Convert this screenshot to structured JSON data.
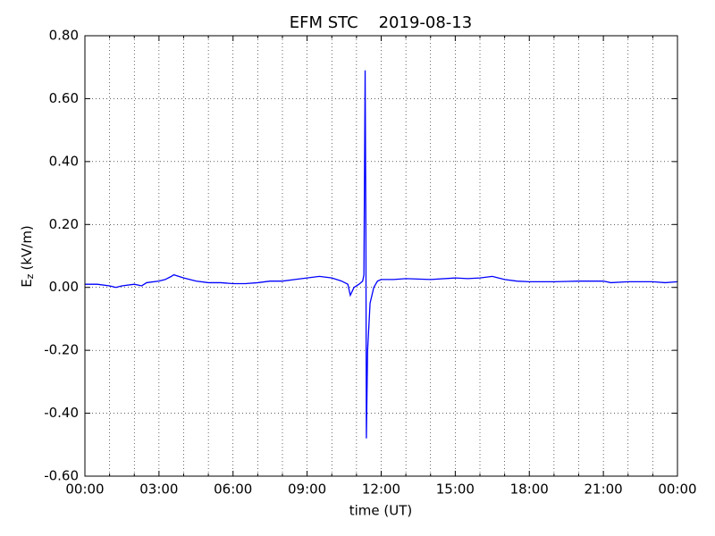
{
  "chart_data": {
    "type": "line",
    "title": "EFM STC    2019-08-13",
    "xlabel": "time (UT)",
    "ylabel": {
      "base": "E",
      "sub": "z",
      "unit": "(kV/m)"
    },
    "x": [
      0,
      0.5,
      1.0,
      1.25,
      1.5,
      2,
      2.3,
      2.5,
      3,
      3.25,
      3.5,
      3.6,
      4,
      4.5,
      5,
      5.5,
      6,
      6.5,
      7,
      7.5,
      8,
      8.5,
      9,
      9.5,
      10,
      10.4,
      10.65,
      10.75,
      10.9,
      11.1,
      11.25,
      11.3,
      11.35,
      11.38,
      11.4,
      11.45,
      11.55,
      11.7,
      11.85,
      12,
      12.5,
      13,
      14,
      15,
      15.5,
      16,
      16.5,
      17,
      17.5,
      18,
      19,
      20,
      21,
      21.3,
      22,
      23,
      23.5,
      24
    ],
    "series": [
      {
        "name": "Ez",
        "color": "#0000ff",
        "values": [
          0.01,
          0.01,
          0.005,
          0.0,
          0.005,
          0.01,
          0.005,
          0.015,
          0.02,
          0.025,
          0.035,
          0.04,
          0.03,
          0.02,
          0.015,
          0.015,
          0.012,
          0.012,
          0.015,
          0.02,
          0.02,
          0.025,
          0.03,
          0.035,
          0.03,
          0.02,
          0.01,
          -0.025,
          0.0,
          0.01,
          0.02,
          0.04,
          0.69,
          0.2,
          -0.48,
          -0.2,
          -0.05,
          0.0,
          0.02,
          0.025,
          0.025,
          0.028,
          0.025,
          0.03,
          0.028,
          0.03,
          0.035,
          0.025,
          0.02,
          0.018,
          0.018,
          0.02,
          0.02,
          0.015,
          0.018,
          0.018,
          0.015,
          0.018
        ]
      }
    ],
    "xlim": [
      0,
      24
    ],
    "xticks": [
      {
        "value": 0,
        "label": "00:00"
      },
      {
        "value": 3,
        "label": "03:00"
      },
      {
        "value": 6,
        "label": "06:00"
      },
      {
        "value": 9,
        "label": "09:00"
      },
      {
        "value": 12,
        "label": "12:00"
      },
      {
        "value": 15,
        "label": "15:00"
      },
      {
        "value": 18,
        "label": "18:00"
      },
      {
        "value": 21,
        "label": "21:00"
      },
      {
        "value": 24,
        "label": "00:00"
      }
    ],
    "xminor": [
      1,
      2,
      4,
      5,
      7,
      8,
      10,
      11,
      13,
      14,
      16,
      17,
      19,
      20,
      22,
      23
    ],
    "ylim": [
      -0.6,
      0.8
    ],
    "yticks": [
      {
        "value": -0.6,
        "label": "-0.60"
      },
      {
        "value": -0.4,
        "label": "-0.40"
      },
      {
        "value": -0.2,
        "label": "-0.20"
      },
      {
        "value": 0,
        "label": "0.00"
      },
      {
        "value": 0.2,
        "label": "0.20"
      },
      {
        "value": 0.4,
        "label": "0.40"
      },
      {
        "value": 0.6,
        "label": "0.60"
      },
      {
        "value": 0.8,
        "label": "0.80"
      }
    ],
    "grid": true
  }
}
